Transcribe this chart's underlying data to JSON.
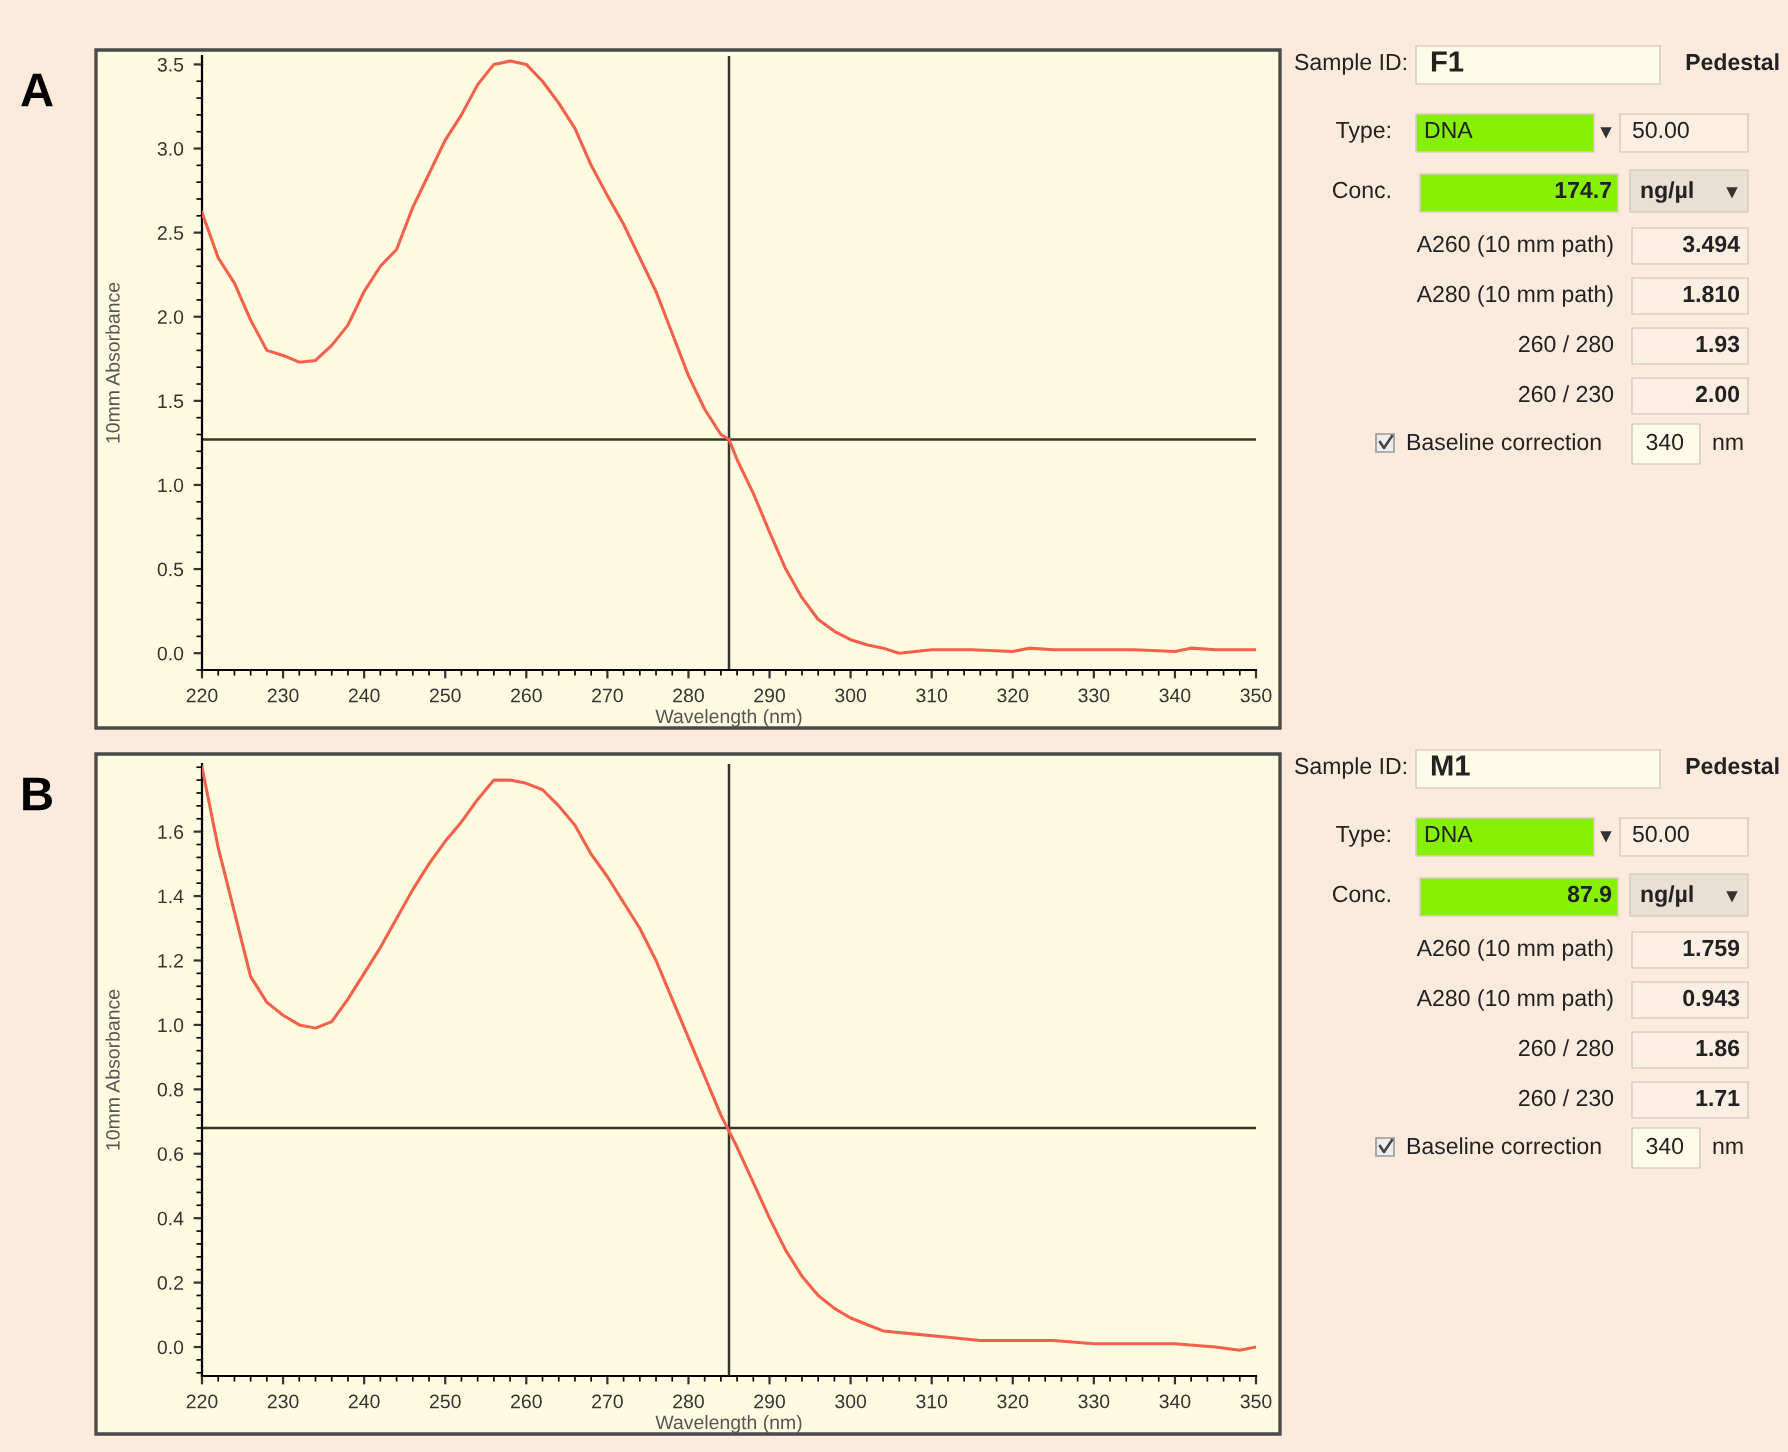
{
  "chart_data": [
    {
      "type": "line",
      "title": "A",
      "xlabel": "Wavelength (nm)",
      "ylabel": "10mm Absorbance",
      "xlim": [
        220,
        350
      ],
      "ylim": [
        -0.1,
        3.55
      ],
      "xticks": [
        220,
        230,
        240,
        250,
        260,
        270,
        280,
        290,
        300,
        310,
        320,
        330,
        340,
        350
      ],
      "yticks": [
        {
          "value": 0,
          "label": "0.0"
        },
        0.5,
        {
          "value": 1,
          "label": "1.0"
        },
        1.5,
        {
          "value": 2,
          "label": "2.0"
        },
        2.5,
        {
          "value": 3,
          "label": "3.0"
        },
        3.5
      ],
      "grid": false,
      "legend": false,
      "x": [
        220,
        222,
        224,
        226,
        228,
        230,
        232,
        234,
        236,
        238,
        240,
        242,
        244,
        246,
        248,
        250,
        252,
        254,
        256,
        258,
        260,
        262,
        264,
        266,
        268,
        270,
        272,
        274,
        276,
        278,
        280,
        282,
        284,
        285,
        286,
        288,
        290,
        292,
        294,
        296,
        298,
        300,
        302,
        304,
        306,
        308,
        310,
        315,
        320,
        322,
        325,
        330,
        335,
        340,
        342,
        345,
        350
      ],
      "series": [
        {
          "color": "#f4604a",
          "values": [
            2.62,
            2.35,
            2.2,
            1.98,
            1.8,
            1.77,
            1.73,
            1.74,
            1.83,
            1.95,
            2.15,
            2.3,
            2.4,
            2.65,
            2.85,
            3.05,
            3.2,
            3.38,
            3.5,
            3.52,
            3.5,
            3.4,
            3.27,
            3.12,
            2.9,
            2.72,
            2.55,
            2.35,
            2.15,
            1.9,
            1.65,
            1.45,
            1.3,
            1.27,
            1.15,
            0.95,
            0.72,
            0.5,
            0.33,
            0.2,
            0.13,
            0.08,
            0.05,
            0.03,
            0.0,
            0.01,
            0.02,
            0.02,
            0.01,
            0.03,
            0.02,
            0.02,
            0.02,
            0.01,
            0.03,
            0.02,
            0.02
          ]
        }
      ],
      "ref_lines": [
        {
          "axis": "x",
          "value": 285,
          "color": "#3a3528"
        },
        {
          "axis": "y",
          "value": 1.27,
          "color": "#3a3528"
        }
      ]
    },
    {
      "type": "other",
      "annotations": [
        "Sample ID:",
        "F1",
        "Pedestal",
        "Type:",
        "DNA",
        "50.00",
        "Conc.",
        "174.7",
        "ng/µl",
        "A260 (10 mm path)",
        "3.494",
        "A280 (10 mm path)",
        "1.810",
        "260 / 280",
        "1.93",
        "260 / 230",
        "2.00",
        "Baseline correction",
        "340",
        "nm"
      ]
    },
    {
      "type": "line",
      "title": "B",
      "xlabel": "Wavelength (nm)",
      "ylabel": "10mm Absorbance",
      "xlim": [
        220,
        350
      ],
      "ylim": [
        -0.09,
        1.81
      ],
      "xticks": [
        220,
        230,
        240,
        250,
        260,
        270,
        280,
        290,
        300,
        310,
        320,
        330,
        340,
        350
      ],
      "yticks": [
        {
          "value": 0,
          "label": "0.0"
        },
        0.2,
        0.4,
        0.6,
        0.8,
        {
          "value": 1,
          "label": "1.0"
        },
        1.2,
        1.4,
        1.6
      ],
      "grid": false,
      "legend": false,
      "x": [
        220,
        222,
        224,
        226,
        228,
        230,
        232,
        234,
        236,
        238,
        240,
        242,
        244,
        246,
        248,
        250,
        252,
        254,
        256,
        258,
        260,
        262,
        264,
        266,
        268,
        270,
        272,
        274,
        276,
        278,
        280,
        282,
        284,
        286,
        288,
        290,
        292,
        294,
        296,
        298,
        300,
        302,
        304,
        308,
        312,
        316,
        320,
        325,
        330,
        335,
        340,
        345,
        348,
        350
      ],
      "series": [
        {
          "color": "#f4604a",
          "values": [
            1.8,
            1.55,
            1.35,
            1.15,
            1.07,
            1.03,
            1.0,
            0.99,
            1.01,
            1.08,
            1.16,
            1.24,
            1.33,
            1.42,
            1.5,
            1.57,
            1.63,
            1.7,
            1.76,
            1.76,
            1.75,
            1.73,
            1.68,
            1.62,
            1.53,
            1.46,
            1.38,
            1.3,
            1.2,
            1.08,
            0.96,
            0.84,
            0.72,
            0.62,
            0.51,
            0.4,
            0.3,
            0.22,
            0.16,
            0.12,
            0.09,
            0.07,
            0.05,
            0.04,
            0.03,
            0.02,
            0.02,
            0.02,
            0.01,
            0.01,
            0.01,
            0.0,
            -0.01,
            0.0
          ]
        }
      ],
      "ref_lines": [
        {
          "axis": "x",
          "value": 285,
          "color": "#3a3528"
        },
        {
          "axis": "y",
          "value": 0.68,
          "color": "#3a3528"
        }
      ]
    },
    {
      "type": "other",
      "annotations": [
        "Sample ID:",
        "M1",
        "Pedestal",
        "Type:",
        "DNA",
        "50.00",
        "Conc.",
        "87.9",
        "ng/µl",
        "A260 (10 mm path)",
        "1.759",
        "A280 (10 mm path)",
        "0.943",
        "260 / 280",
        "1.86",
        "260 / 230",
        "1.71",
        "Baseline correction",
        "340",
        "nm"
      ]
    }
  ]
}
